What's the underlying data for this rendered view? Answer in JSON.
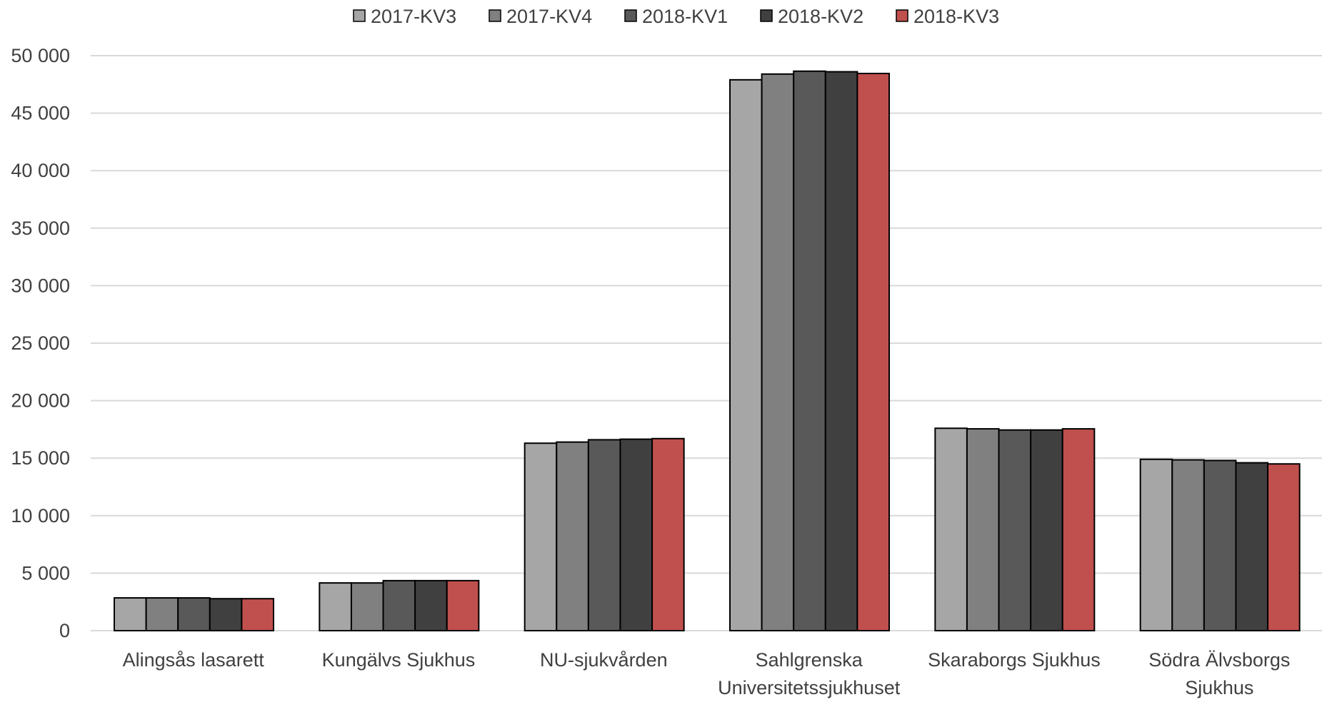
{
  "chart_data": {
    "type": "bar",
    "title": "",
    "xlabel": "",
    "ylabel": "",
    "categories": [
      [
        "Alingsås lasarett"
      ],
      [
        "Kungälvs Sjukhus"
      ],
      [
        "NU-sjukvården"
      ],
      [
        "Sahlgrenska",
        "Universitetssjukhuset"
      ],
      [
        "Skaraborgs Sjukhus"
      ],
      [
        "Södra Älvsborgs",
        "Sjukhus"
      ]
    ],
    "series": [
      {
        "name": "2017-KV3",
        "color": "#a6a6a6",
        "values": [
          2850,
          4150,
          16300,
          47900,
          17600,
          14900
        ]
      },
      {
        "name": "2017-KV4",
        "color": "#808080",
        "values": [
          2850,
          4150,
          16400,
          48400,
          17550,
          14850
        ]
      },
      {
        "name": "2018-KV1",
        "color": "#595959",
        "values": [
          2850,
          4350,
          16600,
          48650,
          17450,
          14800
        ]
      },
      {
        "name": "2018-KV2",
        "color": "#404040",
        "values": [
          2780,
          4350,
          16650,
          48600,
          17450,
          14600
        ]
      },
      {
        "name": "2018-KV3",
        "color": "#c0504d",
        "values": [
          2780,
          4350,
          16700,
          48450,
          17550,
          14500
        ]
      }
    ],
    "ylim": [
      0,
      50000
    ],
    "yticks": [
      0,
      5000,
      10000,
      15000,
      20000,
      25000,
      30000,
      35000,
      40000,
      45000,
      50000
    ],
    "ytick_labels": [
      "0",
      "5 000",
      "10 000",
      "15 000",
      "20 000",
      "25 000",
      "30 000",
      "35 000",
      "40 000",
      "45 000",
      "50 000"
    ],
    "grid": true,
    "legend_position": "top-center",
    "colors": {
      "gridline": "#d9d9d9",
      "bar_outline": "#000000",
      "text": "#404040"
    }
  }
}
